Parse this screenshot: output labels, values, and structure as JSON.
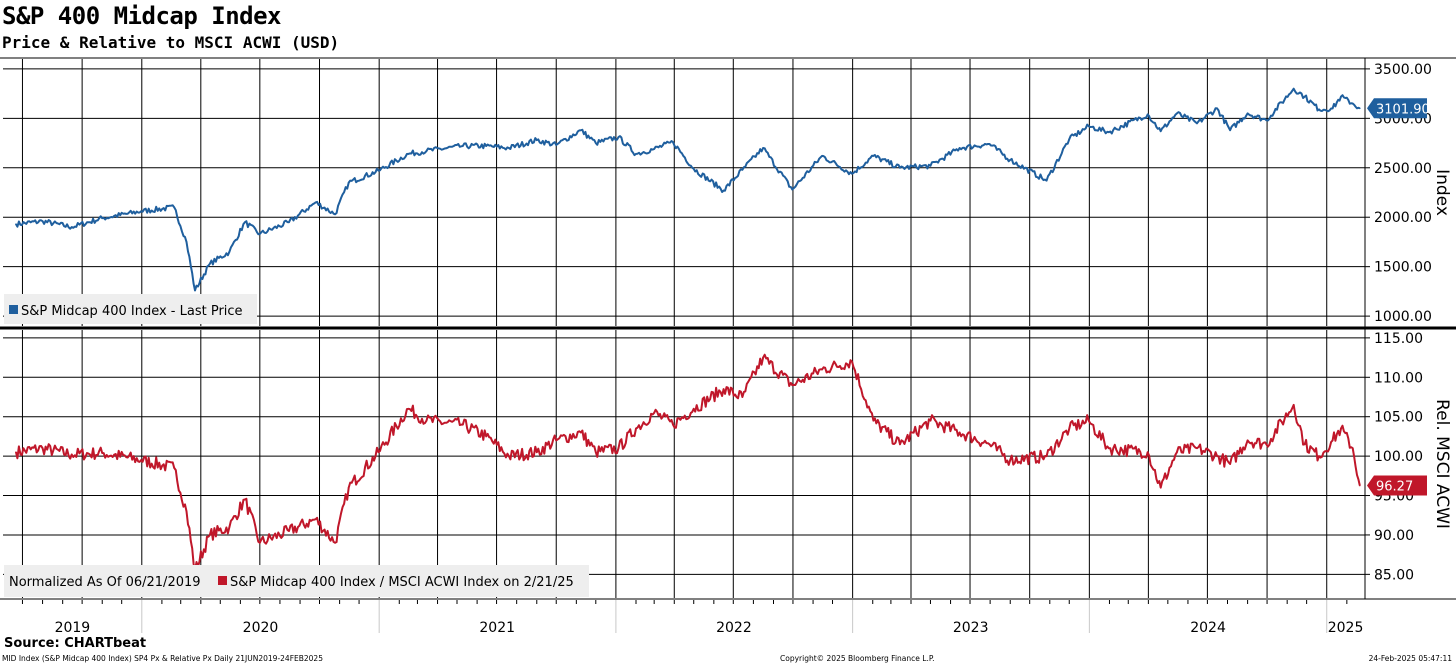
{
  "title": "S&P 400 Midcap Index",
  "subtitle": "Price & Relative to MSCI ACWI (USD)",
  "source": "Source: CHARTbeat",
  "footer": {
    "left": "MID Index (S&P Midcap 400 Index) SP4 Px & Relative Px  Daily 21JUN2019-24FEB2025",
    "center": "Copyright© 2025 Bloomberg Finance L.P.",
    "right": "24-Feb-2025 05:47:11"
  },
  "chart_data": [
    {
      "type": "line",
      "panel": "top",
      "ylabel": "Index",
      "ylim": [
        900,
        3600
      ],
      "yticks": [
        1000,
        1500,
        2000,
        2500,
        3000,
        3500
      ],
      "ytick_labels": [
        "1000.00",
        "1500.00",
        "2000.00",
        "2500.00",
        "3000.00",
        "3500.00"
      ],
      "legend": "S&P Midcap 400 Index - Last Price",
      "last_value_label": "3101.90",
      "color": "#1f5f9e",
      "series": [
        {
          "name": "S&P Midcap 400 Index - Last Price",
          "x": [
            "2019-06-21",
            "2019-08-01",
            "2019-09-15",
            "2019-11-01",
            "2019-12-31",
            "2020-02-20",
            "2020-03-10",
            "2020-03-23",
            "2020-04-15",
            "2020-05-15",
            "2020-06-08",
            "2020-07-01",
            "2020-08-15",
            "2020-09-25",
            "2020-10-25",
            "2020-11-15",
            "2020-12-31",
            "2021-02-15",
            "2021-03-15",
            "2021-05-10",
            "2021-06-15",
            "2021-07-20",
            "2021-09-01",
            "2021-10-01",
            "2021-11-08",
            "2021-12-01",
            "2022-01-05",
            "2022-02-01",
            "2022-03-01",
            "2022-03-30",
            "2022-05-01",
            "2022-06-16",
            "2022-07-15",
            "2022-08-16",
            "2022-09-30",
            "2022-11-15",
            "2022-12-31",
            "2023-02-02",
            "2023-03-15",
            "2023-05-01",
            "2023-06-15",
            "2023-07-31",
            "2023-09-01",
            "2023-10-27",
            "2023-12-01",
            "2023-12-31",
            "2024-01-31",
            "2024-03-31",
            "2024-04-20",
            "2024-05-15",
            "2024-06-15",
            "2024-07-16",
            "2024-08-05",
            "2024-09-01",
            "2024-09-30",
            "2024-11-11",
            "2024-11-28",
            "2024-12-20",
            "2025-01-10",
            "2025-01-23",
            "2025-02-10",
            "2025-02-21"
          ],
          "values": [
            1930,
            1960,
            1900,
            1990,
            2060,
            2100,
            1750,
            1260,
            1530,
            1650,
            1950,
            1830,
            1950,
            2150,
            2030,
            2350,
            2470,
            2640,
            2670,
            2720,
            2720,
            2700,
            2780,
            2730,
            2880,
            2750,
            2810,
            2640,
            2690,
            2760,
            2490,
            2270,
            2480,
            2700,
            2280,
            2620,
            2440,
            2620,
            2500,
            2520,
            2700,
            2740,
            2580,
            2370,
            2790,
            2920,
            2860,
            3040,
            2870,
            3050,
            2950,
            3100,
            2880,
            3050,
            2980,
            3300,
            3220,
            3090,
            3100,
            3220,
            3150,
            3101.9
          ]
        }
      ]
    },
    {
      "type": "line",
      "panel": "bottom",
      "ylabel": "Rel. MSCI ACWI",
      "ylim": [
        82,
        116
      ],
      "yticks": [
        85,
        90,
        95,
        100,
        105,
        110,
        115
      ],
      "ytick_labels": [
        "85.00",
        "90.00",
        "95.00",
        "100.00",
        "105.00",
        "110.00",
        "115.00"
      ],
      "legend_note": "Normalized As Of 06/21/2019",
      "legend": "S&P Midcap 400 Index / MSCI ACWI Index on 2/21/25",
      "last_value_label": "96.27",
      "color": "#c0172a",
      "series": [
        {
          "name": "S&P Midcap 400 Index / MSCI ACWI Index on 2/21/25",
          "x": [
            "2019-06-21",
            "2019-08-01",
            "2019-09-15",
            "2019-11-01",
            "2019-12-31",
            "2020-02-20",
            "2020-03-10",
            "2020-03-23",
            "2020-04-15",
            "2020-05-15",
            "2020-06-08",
            "2020-07-01",
            "2020-08-15",
            "2020-09-25",
            "2020-10-25",
            "2020-11-15",
            "2020-12-31",
            "2021-02-15",
            "2021-03-15",
            "2021-05-10",
            "2021-06-15",
            "2021-07-20",
            "2021-09-01",
            "2021-10-01",
            "2021-11-08",
            "2021-12-01",
            "2022-01-05",
            "2022-02-01",
            "2022-03-01",
            "2022-03-30",
            "2022-05-01",
            "2022-06-16",
            "2022-07-15",
            "2022-08-16",
            "2022-09-30",
            "2022-11-15",
            "2022-12-31",
            "2023-02-02",
            "2023-03-15",
            "2023-05-01",
            "2023-06-15",
            "2023-07-31",
            "2023-09-01",
            "2023-10-27",
            "2023-12-01",
            "2023-12-31",
            "2024-01-31",
            "2024-03-31",
            "2024-04-20",
            "2024-05-15",
            "2024-06-15",
            "2024-07-16",
            "2024-08-05",
            "2024-09-01",
            "2024-09-30",
            "2024-11-11",
            "2024-11-28",
            "2024-12-20",
            "2025-01-10",
            "2025-01-23",
            "2025-02-10",
            "2025-02-21"
          ],
          "values": [
            100.5,
            101.0,
            100.2,
            100.4,
            99.5,
            98.5,
            93.0,
            85.5,
            90.0,
            91.0,
            94.5,
            89.0,
            90.5,
            92.0,
            89.0,
            96.0,
            100.5,
            106.0,
            104.5,
            104.0,
            102.5,
            100.0,
            100.5,
            102.0,
            103.0,
            100.5,
            101.0,
            103.5,
            105.5,
            104.0,
            106.0,
            108.5,
            107.5,
            112.5,
            109.0,
            111.0,
            112.0,
            104.5,
            101.5,
            104.5,
            103.0,
            101.5,
            99.5,
            100.0,
            103.5,
            104.5,
            101.0,
            100.5,
            96.0,
            100.5,
            101.0,
            100.0,
            99.0,
            102.0,
            101.5,
            106.5,
            101.5,
            100.0,
            102.0,
            103.5,
            101.0,
            96.27
          ]
        }
      ]
    }
  ],
  "x_axis": {
    "year_labels": [
      "2019",
      "2020",
      "2021",
      "2022",
      "2023",
      "2024",
      "2025"
    ]
  }
}
